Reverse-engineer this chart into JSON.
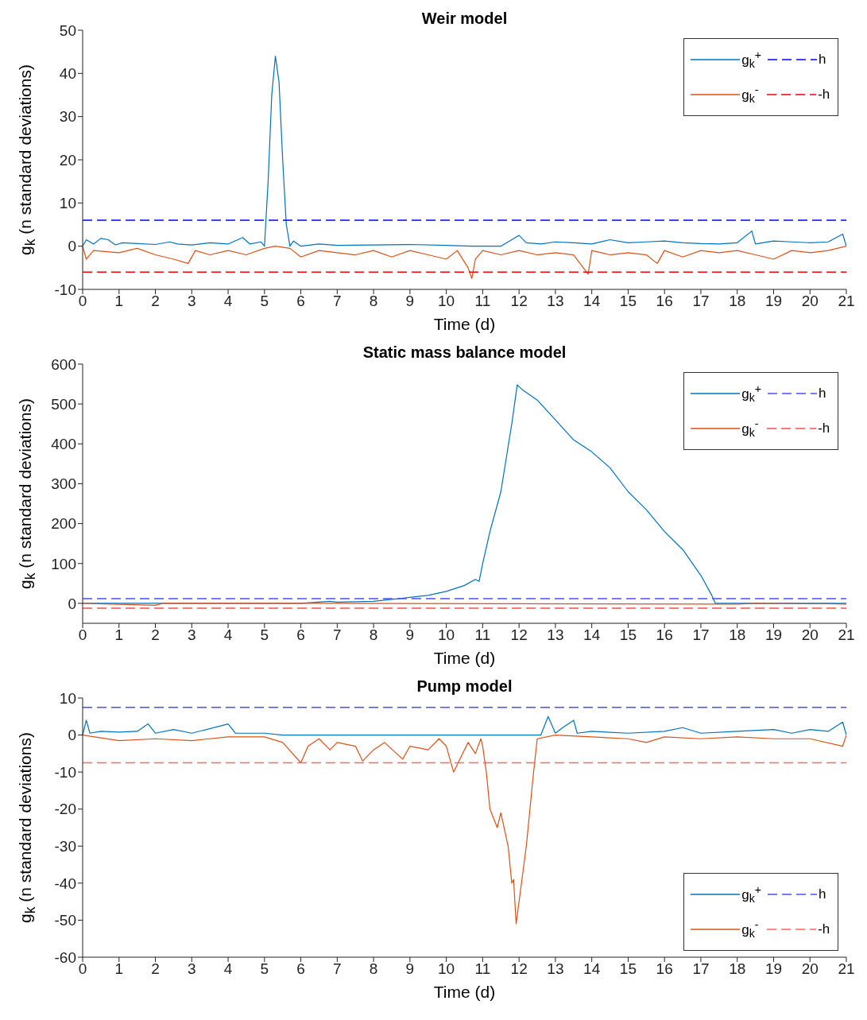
{
  "chart_data": [
    {
      "type": "line",
      "title": "Weir model",
      "xlabel": "Time (d)",
      "ylabel": "g$_{k}$  (n standard deviations)",
      "xlim": [
        0,
        21
      ],
      "xticks": [
        0,
        1,
        2,
        3,
        4,
        5,
        6,
        7,
        8,
        9,
        10,
        11,
        12,
        13,
        14,
        15,
        16,
        17,
        18,
        19,
        20,
        21
      ],
      "ylim": [
        -10,
        50
      ],
      "yticks": [
        -10,
        0,
        10,
        20,
        30,
        40,
        50
      ],
      "legend": "top right",
      "series": [
        {
          "name": "g$_{k}$$^{+}$",
          "color": "#0072bd",
          "x": [
            0,
            0.1,
            0.3,
            0.5,
            0.7,
            0.9,
            1.1,
            1.5,
            2,
            2.4,
            2.6,
            3,
            3.5,
            4,
            4.4,
            4.6,
            4.9,
            5.0,
            5.1,
            5.2,
            5.3,
            5.4,
            5.5,
            5.6,
            5.7,
            5.8,
            6,
            6.5,
            7,
            8,
            9,
            10,
            10.7,
            11.5,
            12,
            12.2,
            12.6,
            13,
            13.5,
            14,
            14.5,
            15,
            15.5,
            16,
            16.5,
            17,
            17.5,
            18,
            18.4,
            18.5,
            19,
            19.5,
            20,
            20.5,
            20.9,
            21
          ],
          "values": [
            0,
            1.5,
            0.5,
            1.8,
            1.5,
            0.3,
            0.8,
            0.6,
            0.4,
            1.0,
            0.5,
            0.3,
            0.8,
            0.5,
            2.0,
            0.5,
            1,
            0,
            15,
            35,
            44,
            38,
            20,
            5,
            0,
            1.2,
            0,
            0.5,
            0.2,
            0.3,
            0.4,
            0.2,
            0,
            0,
            2.5,
            0.8,
            0.5,
            1,
            0.8,
            0.5,
            1.5,
            0.8,
            1,
            1.2,
            0.8,
            0.6,
            0.5,
            0.8,
            3.5,
            0.5,
            1.2,
            1.0,
            0.8,
            1,
            2.8,
            0
          ]
        },
        {
          "name": "g$_{k}$$^{-}$",
          "color": "#d95319",
          "x": [
            0,
            0.1,
            0.3,
            1,
            1.5,
            2,
            2.5,
            2.9,
            3.1,
            3.5,
            4,
            4.5,
            5,
            5.3,
            5.7,
            6,
            6.5,
            7,
            7.5,
            8,
            8.5,
            9,
            9.5,
            10,
            10.3,
            10.6,
            10.7,
            10.8,
            11,
            11.5,
            12,
            12.5,
            13,
            13.5,
            13.9,
            14,
            14.5,
            15,
            15.5,
            15.8,
            16,
            16.5,
            17,
            17.5,
            18,
            18.5,
            19,
            19.5,
            20,
            20.5,
            21
          ],
          "values": [
            0,
            -3,
            -1,
            -1.5,
            -0.5,
            -2,
            -3,
            -4,
            -1,
            -2,
            -1,
            -2,
            -0.5,
            0,
            -0.5,
            -2.5,
            -1,
            -1.5,
            -2,
            -1,
            -2.5,
            -1,
            -2,
            -3,
            -1,
            -5,
            -7.5,
            -3,
            -1,
            -2,
            -1,
            -2,
            -1.5,
            -2,
            -6.5,
            -1,
            -2,
            -1.5,
            -2,
            -4,
            -1,
            -2.5,
            -1,
            -1.5,
            -1,
            -2,
            -3,
            -1,
            -1.5,
            -1,
            0
          ]
        },
        {
          "name": "h",
          "color": "#0000ff",
          "line_style": "dashed",
          "x": [
            0,
            21
          ],
          "values": [
            6,
            6
          ]
        },
        {
          "name": "-h",
          "color": "#ff0000",
          "line_style": "dashed",
          "x": [
            0,
            21
          ],
          "values": [
            -6,
            -6
          ]
        }
      ]
    },
    {
      "type": "line",
      "title": "Static mass balance model",
      "xlabel": "Time (d)",
      "ylabel": "g$_{k}$  (n standard deviations)",
      "xlim": [
        0,
        21
      ],
      "xticks": [
        0,
        1,
        2,
        3,
        4,
        5,
        6,
        7,
        8,
        9,
        10,
        11,
        12,
        13,
        14,
        15,
        16,
        17,
        18,
        19,
        20,
        21
      ],
      "ylim": [
        -50,
        600
      ],
      "yticks": [
        0,
        100,
        200,
        300,
        400,
        500,
        600
      ],
      "legend": "top right",
      "series": [
        {
          "name": "g$_{k}$$^{+}$",
          "color": "#0072bd",
          "x": [
            0,
            6,
            6.8,
            7,
            8,
            8.5,
            9,
            9.5,
            10,
            10.5,
            10.8,
            10.9,
            11,
            11.2,
            11.5,
            11.8,
            11.95,
            12.1,
            12.5,
            13,
            13.5,
            14,
            14.5,
            15,
            15.5,
            16,
            16.5,
            17,
            17.3,
            17.4,
            21
          ],
          "values": [
            0,
            0,
            5,
            3,
            5,
            10,
            15,
            20,
            30,
            45,
            60,
            55,
            100,
            180,
            280,
            450,
            548,
            535,
            510,
            460,
            410,
            380,
            340,
            280,
            235,
            180,
            135,
            70,
            20,
            0,
            0
          ]
        },
        {
          "name": "g$_{k}$$^{-}$",
          "color": "#d95319",
          "x": [
            0,
            2,
            2.2,
            6,
            18,
            18.5,
            20.5,
            21
          ],
          "values": [
            0,
            -5,
            0,
            0,
            -2,
            0,
            -1,
            -2
          ]
        },
        {
          "name": "h",
          "color": "#4d4dff",
          "line_style": "dashed",
          "x": [
            0,
            21
          ],
          "values": [
            12,
            12
          ]
        },
        {
          "name": "-h",
          "color": "#ff4d4d",
          "line_style": "dashed",
          "x": [
            0,
            21
          ],
          "values": [
            -12,
            -12
          ]
        }
      ]
    },
    {
      "type": "line",
      "title": "Pump model",
      "xlabel": "Time (d)",
      "ylabel": "g$_{k}$  (n standard deviations)",
      "xlim": [
        0,
        21
      ],
      "xticks": [
        0,
        1,
        2,
        3,
        4,
        5,
        6,
        7,
        8,
        9,
        10,
        11,
        12,
        13,
        14,
        15,
        16,
        17,
        18,
        19,
        20,
        21
      ],
      "ylim": [
        -60,
        10
      ],
      "yticks": [
        -60,
        -50,
        -40,
        -30,
        -20,
        -10,
        0,
        10
      ],
      "legend": "bottom right",
      "series": [
        {
          "name": "g$_{k}$$^{+}$",
          "color": "#0072bd",
          "x": [
            0,
            0.1,
            0.2,
            0.5,
            1,
            1.5,
            1.8,
            2,
            2.5,
            3,
            4,
            4.2,
            5,
            5.5,
            12.6,
            12.8,
            13,
            13.2,
            13.5,
            13.6,
            14,
            15,
            16,
            16.5,
            17,
            18,
            19,
            19.5,
            20,
            20.5,
            20.9,
            21
          ],
          "values": [
            0,
            4,
            0.5,
            1,
            0.8,
            1,
            3,
            0.5,
            1.5,
            0.5,
            3,
            0.5,
            0.5,
            0,
            0,
            5,
            0.5,
            2,
            4,
            0.5,
            1,
            0.5,
            1,
            2,
            0.5,
            1,
            1.5,
            0.5,
            1.5,
            1,
            3.5,
            0
          ]
        },
        {
          "name": "g$_{k}$$^{-}$",
          "color": "#d95319",
          "x": [
            0,
            1,
            2,
            3,
            4,
            5,
            5.5,
            6,
            6.2,
            6.5,
            6.8,
            7,
            7.5,
            7.7,
            8,
            8.3,
            8.8,
            9,
            9.5,
            9.8,
            10,
            10.2,
            10.4,
            10.6,
            10.8,
            10.95,
            11,
            11.1,
            11.2,
            11.4,
            11.5,
            11.7,
            11.8,
            11.85,
            11.92,
            12,
            12.2,
            12.4,
            12.5,
            13,
            14,
            15,
            15.5,
            16,
            17,
            18,
            19,
            20,
            20.9,
            21
          ],
          "values": [
            0,
            -1.5,
            -1,
            -1.5,
            -0.5,
            -0.5,
            -2,
            -7.5,
            -3,
            -1,
            -4,
            -2,
            -3,
            -7,
            -4,
            -2,
            -6.5,
            -3,
            -4,
            -1,
            -3,
            -10,
            -6,
            -2,
            -5,
            -1,
            -3,
            -10,
            -20,
            -25,
            -21,
            -30,
            -40,
            -39,
            -51,
            -45,
            -30,
            -10,
            -1,
            0,
            -0.5,
            -1,
            -2,
            -0.5,
            -1,
            -0.5,
            -1,
            -1,
            -3,
            0
          ]
        },
        {
          "name": "h",
          "color": "#4d4dff",
          "line_style": "dashed",
          "x": [
            0,
            21
          ],
          "values": [
            7.5,
            7.5
          ]
        },
        {
          "name": "-h",
          "color": "#ff6666",
          "line_style": "dashed",
          "x": [
            0,
            21
          ],
          "values": [
            -7.5,
            -7.5
          ]
        }
      ]
    }
  ]
}
